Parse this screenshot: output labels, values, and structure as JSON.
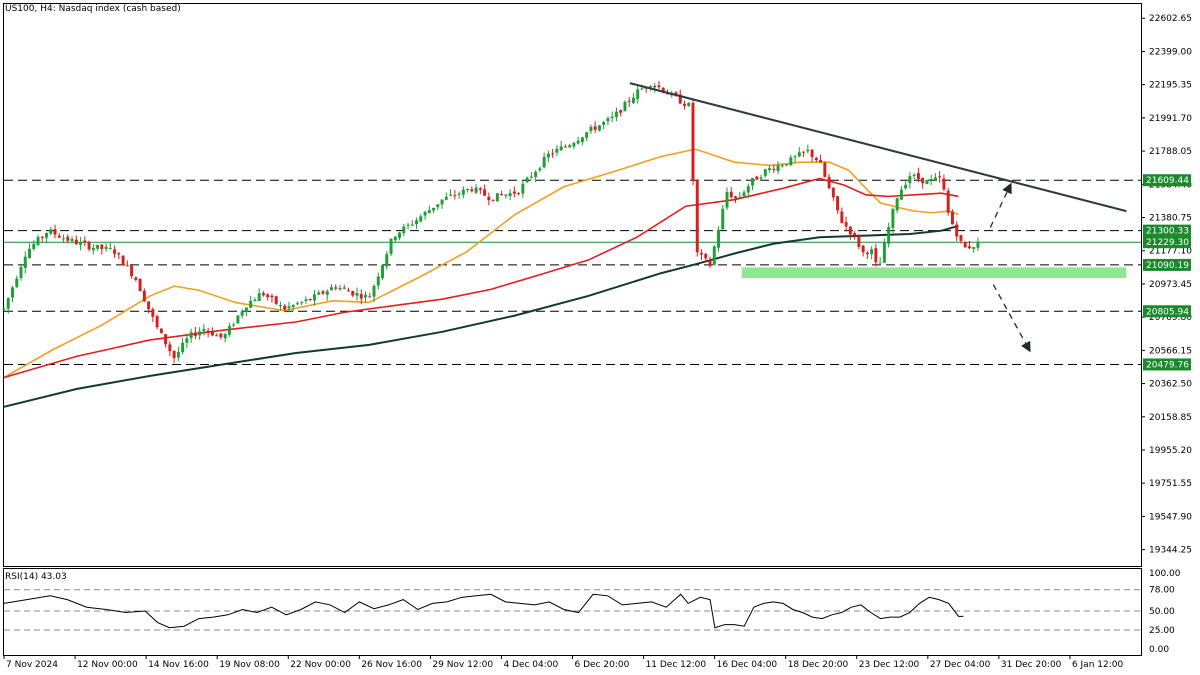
{
  "header": {
    "symbol_label": "US100, H4:",
    "instrument_label": "Nasdaq index (cash based)"
  },
  "rsi_panel": {
    "label": "RSI(14) 43.03"
  },
  "colors": {
    "bull": "#1f9e3a",
    "bear": "#d91e1e",
    "ma_fast": "#f0a020",
    "ma_mid": "#e02020",
    "ma_slow": "#113c2c",
    "trendline": "#2f3a3f",
    "support_zone": "#7ee27e",
    "level_tag_bg": "#1b8a2c",
    "level_tag_text": "#ffffff",
    "grid_dash": "#000000"
  },
  "chart_data": [
    {
      "type": "candlestick",
      "title": "US100, H4: Nasdaq index (cash based)",
      "y_tick_labels": [
        "22602.65",
        "22399.00",
        "22195.35",
        "21991.70",
        "21788.05",
        "21584.40",
        "21380.75",
        "21177.10",
        "20973.45",
        "20769.80",
        "20566.15",
        "20362.50",
        "20158.85",
        "19955.20",
        "19751.55",
        "19547.90",
        "19344.25"
      ],
      "ylim": [
        19244,
        22690
      ],
      "x_tick_labels": [
        "7 Nov 2024",
        "12 Nov 00:00",
        "14 Nov 16:00",
        "19 Nov 08:00",
        "22 Nov 00:00",
        "26 Nov 16:00",
        "29 Nov 12:00",
        "4 Dec 04:00",
        "6 Dec 20:00",
        "11 Dec 12:00",
        "16 Dec 04:00",
        "18 Dec 20:00",
        "23 Dec 12:00",
        "27 Dec 04:00",
        "31 Dec 20:00",
        "6 Jan 12:00"
      ],
      "horizontal_levels": [
        {
          "value": 21609.44,
          "label": "21609.44",
          "style": "dashed"
        },
        {
          "value": 21300.33,
          "label": "21300.33",
          "style": "dashed"
        },
        {
          "value": 21229.3,
          "label": "21229.30",
          "style": "solid"
        },
        {
          "value": 21090.19,
          "label": "21090.19",
          "style": "dashed"
        },
        {
          "value": 20805.94,
          "label": "20805.94",
          "style": "dashed"
        },
        {
          "value": 20479.76,
          "label": "20479.76",
          "style": "dashed"
        }
      ],
      "support_zone": {
        "from": 21010,
        "to": 21075
      },
      "trendline": {
        "from": {
          "bar": 0.5504,
          "value": 22205
        },
        "to": {
          "bar": 0.9871,
          "value": 21420
        }
      },
      "projections": [
        {
          "direction": "up",
          "from": {
            "bar": 0.8675,
            "value": 21320
          },
          "to": {
            "bar": 0.8851,
            "value": 21580
          }
        },
        {
          "direction": "down",
          "from": {
            "bar": 0.8701,
            "value": 20970
          },
          "to": {
            "bar": 0.9018,
            "value": 20568
          }
        }
      ],
      "series": [
        {
          "name": "close",
          "kind": "price",
          "x": [
            0.0,
            0.0193,
            0.0385,
            0.0578,
            0.0771,
            0.0963,
            0.1156,
            0.1348,
            0.1498,
            0.1626,
            0.1755,
            0.1926,
            0.2118,
            0.2268,
            0.2461,
            0.2697,
            0.2911,
            0.3061,
            0.3211,
            0.3425,
            0.3597,
            0.3854,
            0.4111,
            0.4282,
            0.4518,
            0.4795,
            0.4946,
            0.5139,
            0.5353,
            0.5567,
            0.5696,
            0.5888,
            0.6038,
            0.6081,
            0.621,
            0.636,
            0.6445,
            0.6574,
            0.6702,
            0.6916,
            0.7066,
            0.7173,
            0.7259,
            0.7366,
            0.7473,
            0.7559,
            0.7623,
            0.7687,
            0.7773,
            0.7859,
            0.7966,
            0.8116,
            0.818,
            0.8245,
            0.8309,
            0.8395,
            0.8438,
            0.8502,
            0.8566,
            0.863,
            0.8566
          ],
          "values": [
            20820,
            21170,
            21300,
            21240,
            21200,
            21180,
            21010,
            20700,
            20520,
            20650,
            20700,
            20640,
            20840,
            20920,
            20820,
            20880,
            20960,
            20920,
            20890,
            21270,
            21350,
            21490,
            21560,
            21500,
            21540,
            21770,
            21820,
            21910,
            21990,
            22150,
            22210,
            22120,
            22060,
            21170,
            21090,
            21540,
            21490,
            21600,
            21670,
            21730,
            21790,
            21720,
            21550,
            21360,
            21270,
            21160,
            21190,
            21050,
            21300,
            21520,
            21640,
            21600,
            21610,
            21620,
            21390,
            21260,
            21190,
            21205,
            21220,
            21210,
            21205
          ]
        },
        {
          "name": "MA fast",
          "kind": "moving_average",
          "x": [
            0.0,
            0.0428,
            0.0857,
            0.1285,
            0.1498,
            0.1713,
            0.2034,
            0.2461,
            0.289,
            0.3211,
            0.3639,
            0.4068,
            0.4496,
            0.4925,
            0.5353,
            0.5781,
            0.6081,
            0.6424,
            0.6746,
            0.7002,
            0.7259,
            0.743,
            0.758,
            0.7709,
            0.788,
            0.8009,
            0.8159,
            0.8309,
            0.8395
          ],
          "values": [
            20400,
            20570,
            20720,
            20900,
            20960,
            20935,
            20860,
            20810,
            20870,
            20860,
            21010,
            21170,
            21400,
            21570,
            21660,
            21755,
            21800,
            21720,
            21700,
            21720,
            21720,
            21670,
            21560,
            21470,
            21440,
            21420,
            21410,
            21420,
            21400
          ]
        },
        {
          "name": "MA mid",
          "kind": "moving_average",
          "x": [
            0.0,
            0.0642,
            0.1285,
            0.1926,
            0.2568,
            0.2997,
            0.3425,
            0.3854,
            0.4282,
            0.4711,
            0.5139,
            0.5567,
            0.5996,
            0.6424,
            0.6852,
            0.7173,
            0.7387,
            0.758,
            0.7773,
            0.8009,
            0.8245,
            0.8395
          ],
          "values": [
            20400,
            20530,
            20630,
            20690,
            20740,
            20800,
            20840,
            20880,
            20940,
            21030,
            21120,
            21260,
            21450,
            21490,
            21560,
            21620,
            21580,
            21520,
            21510,
            21520,
            21530,
            21510
          ]
        },
        {
          "name": "MA slow",
          "kind": "moving_average",
          "x": [
            0.0,
            0.0642,
            0.1285,
            0.1926,
            0.2568,
            0.3211,
            0.3854,
            0.4496,
            0.5139,
            0.5781,
            0.606,
            0.6424,
            0.6766,
            0.7173,
            0.758,
            0.7966,
            0.8245,
            0.8395
          ],
          "values": [
            20220,
            20330,
            20410,
            20480,
            20550,
            20600,
            20680,
            20780,
            20900,
            21040,
            21090,
            21160,
            21220,
            21260,
            21270,
            21280,
            21300,
            21330
          ]
        }
      ]
    },
    {
      "type": "line",
      "title": "RSI(14) 43.03",
      "y_tick_labels": [
        "100.00",
        "78.00",
        "50.00",
        "25.00",
        "0.00"
      ],
      "ylim": [
        0,
        100
      ],
      "reference_levels": [
        78,
        50,
        25
      ],
      "x": [
        0.0,
        0.0407,
        0.0557,
        0.0728,
        0.0899,
        0.1071,
        0.1242,
        0.1349,
        0.1456,
        0.1584,
        0.1713,
        0.1841,
        0.1969,
        0.2098,
        0.2226,
        0.2354,
        0.2483,
        0.2611,
        0.274,
        0.2868,
        0.2997,
        0.3125,
        0.3254,
        0.3382,
        0.3511,
        0.3639,
        0.3768,
        0.3896,
        0.4025,
        0.4153,
        0.4282,
        0.441,
        0.4539,
        0.4667,
        0.4796,
        0.4924,
        0.5053,
        0.5181,
        0.531,
        0.5438,
        0.5567,
        0.5695,
        0.5824,
        0.5952,
        0.6017,
        0.6124,
        0.621,
        0.6252,
        0.6338,
        0.6424,
        0.651,
        0.6595,
        0.6681,
        0.6766,
        0.6852,
        0.6938,
        0.7023,
        0.7109,
        0.7195,
        0.7281,
        0.7366,
        0.7452,
        0.7537,
        0.7623,
        0.7709,
        0.7794,
        0.788,
        0.7966,
        0.8052,
        0.8137,
        0.8223,
        0.8309,
        0.8395,
        0.8438
      ],
      "values": [
        60,
        70,
        65,
        55,
        52,
        48,
        50,
        35,
        28,
        30,
        40,
        42,
        45,
        52,
        48,
        55,
        45,
        52,
        62,
        58,
        48,
        62,
        53,
        58,
        65,
        52,
        60,
        62,
        68,
        70,
        72,
        62,
        60,
        58,
        62,
        52,
        48,
        72,
        70,
        58,
        60,
        62,
        55,
        72,
        60,
        68,
        65,
        28,
        32,
        32,
        30,
        55,
        60,
        62,
        60,
        52,
        48,
        42,
        40,
        45,
        48,
        55,
        58,
        48,
        40,
        42,
        42,
        48,
        60,
        68,
        65,
        60,
        43,
        43
      ]
    }
  ]
}
